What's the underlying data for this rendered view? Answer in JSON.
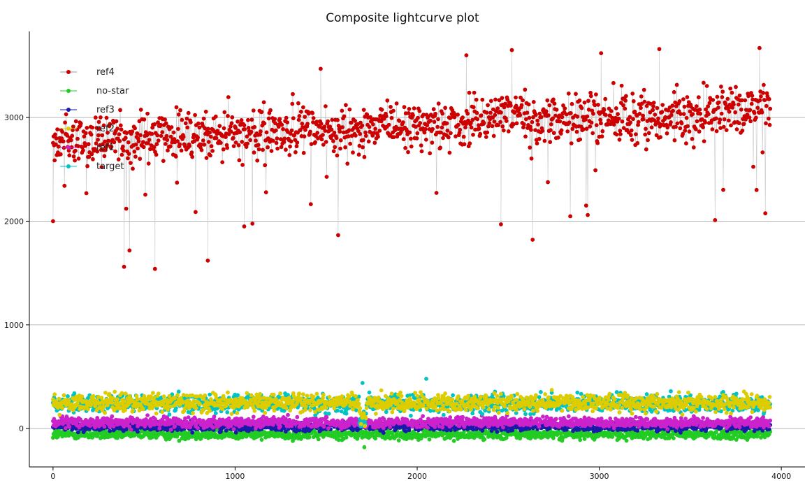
{
  "chart_data": {
    "type": "scatter",
    "title": "Composite lightcurve plot",
    "xlabel": "",
    "ylabel": "",
    "xlim": [
      -130,
      4130
    ],
    "ylim": [
      -370,
      3830
    ],
    "xticks": [
      0,
      1000,
      2000,
      3000,
      4000
    ],
    "yticks": [
      0,
      1000,
      2000,
      3000
    ],
    "grid": "horizontal",
    "legend_placement": "top-left",
    "n_points": 3940,
    "series": [
      {
        "name": "ref4",
        "color": "#cc0000",
        "marker": "circle",
        "connected": true,
        "base_start": 2770,
        "base_end": 3060,
        "noise": 170
      },
      {
        "name": "no-star",
        "color": "#22cc22",
        "marker": "circle",
        "connected": false,
        "base_start": -55,
        "base_end": -55,
        "noise": 35
      },
      {
        "name": "ref3",
        "color": "#1a1aaa",
        "marker": "circle",
        "connected": false,
        "base_start": 20,
        "base_end": 20,
        "noise": 30
      },
      {
        "name": "ref2",
        "color": "#ddcc00",
        "marker": "circle",
        "connected": false,
        "base_start": 250,
        "base_end": 250,
        "noise": 60
      },
      {
        "name": "ref1",
        "color": "#cc22cc",
        "marker": "circle",
        "connected": false,
        "base_start": 60,
        "base_end": 60,
        "noise": 35
      },
      {
        "name": "target",
        "color": "#00c4c4",
        "marker": "circle",
        "connected": false,
        "base_start": 240,
        "base_end": 240,
        "noise": 60
      }
    ],
    "notable_points": [
      {
        "series": "ref4",
        "x": 560,
        "y": 1540
      },
      {
        "series": "ref4",
        "x": 390,
        "y": 1560
      },
      {
        "series": "ref4",
        "x": 850,
        "y": 1620
      },
      {
        "series": "ref4",
        "x": 1050,
        "y": 1950
      },
      {
        "series": "ref4",
        "x": 2460,
        "y": 1970
      },
      {
        "series": "ref4",
        "x": 0,
        "y": 2000
      },
      {
        "series": "ref4",
        "x": 1470,
        "y": 3470
      },
      {
        "series": "ref4",
        "x": 2520,
        "y": 3650
      },
      {
        "series": "ref4",
        "x": 3880,
        "y": 3670
      },
      {
        "series": "ref4",
        "x": 3330,
        "y": 3660
      },
      {
        "series": "ref4",
        "x": 2270,
        "y": 3600
      },
      {
        "series": "ref4",
        "x": 3010,
        "y": 3620
      },
      {
        "series": "target",
        "x": 2050,
        "y": 480
      },
      {
        "series": "target",
        "x": 1700,
        "y": 440
      },
      {
        "series": "no-star",
        "x": 1710,
        "y": -180
      }
    ]
  }
}
